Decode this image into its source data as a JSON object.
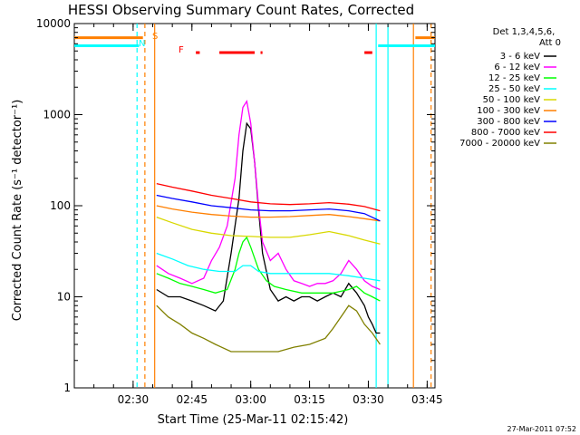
{
  "chart_data": {
    "type": "line",
    "title": "HESSI Observing Summary Count Rates, Corrected",
    "xlabel": "Start Time (25-Mar-11 02:15:42)",
    "ylabel": "Corrected Count Rate (s⁻¹ detector⁻¹)",
    "y_scale": "log",
    "xlim_minutes": [
      0,
      92
    ],
    "ylim": [
      1,
      10000
    ],
    "x_ticks": [
      {
        "m": 15,
        "label": "02:30"
      },
      {
        "m": 30,
        "label": "02:45"
      },
      {
        "m": 45,
        "label": "03:00"
      },
      {
        "m": 60,
        "label": "03:15"
      },
      {
        "m": 75,
        "label": "03:30"
      },
      {
        "m": 90,
        "label": "03:45"
      }
    ],
    "y_ticks": [
      {
        "v": 1,
        "label": "1"
      },
      {
        "v": 10,
        "label": "10"
      },
      {
        "v": 100,
        "label": "100"
      },
      {
        "v": 1000,
        "label": "1000"
      },
      {
        "v": 10000,
        "label": "10000"
      }
    ],
    "legend": {
      "header": [
        "Det 1,3,4,5,6,",
        "Att 0"
      ],
      "placement": "right"
    },
    "series": [
      {
        "name": "3 - 6 keV",
        "color": "#000000",
        "x": [
          21,
          24,
          27,
          30,
          33,
          36,
          38,
          40,
          42,
          43,
          44,
          45,
          46,
          47,
          48,
          50,
          52,
          54,
          56,
          58,
          60,
          62,
          64,
          66,
          68,
          70,
          72,
          74,
          75,
          76,
          77,
          78
        ],
        "y": [
          12,
          10,
          10,
          9,
          8,
          7,
          9,
          30,
          120,
          400,
          800,
          700,
          300,
          90,
          30,
          12,
          9,
          10,
          9,
          10,
          10,
          9,
          10,
          11,
          10,
          14,
          11,
          8,
          6,
          5,
          4,
          4
        ]
      },
      {
        "name": "6 - 12 keV",
        "color": "#ff00ff",
        "x": [
          21,
          24,
          27,
          30,
          33,
          35,
          37,
          39,
          41,
          42,
          43,
          44,
          45,
          46,
          47,
          48,
          50,
          52,
          54,
          56,
          58,
          60,
          62,
          64,
          66,
          68,
          70,
          72,
          74,
          76,
          78
        ],
        "y": [
          22,
          18,
          16,
          14,
          16,
          25,
          35,
          60,
          200,
          600,
          1200,
          1400,
          800,
          300,
          100,
          40,
          25,
          30,
          20,
          15,
          14,
          13,
          14,
          14,
          15,
          18,
          25,
          20,
          15,
          13,
          12
        ]
      },
      {
        "name": "12 - 25 keV",
        "color": "#00ff00",
        "x": [
          21,
          24,
          27,
          30,
          33,
          36,
          39,
          41,
          42,
          43,
          44,
          45,
          47,
          49,
          51,
          54,
          58,
          62,
          66,
          70,
          72,
          74,
          76,
          78
        ],
        "y": [
          18,
          16,
          14,
          13,
          12,
          11,
          12,
          20,
          30,
          40,
          45,
          35,
          20,
          15,
          13,
          12,
          11,
          11,
          11,
          12,
          13,
          11,
          10,
          9
        ]
      },
      {
        "name": "25 - 50 keV",
        "color": "#00ffff",
        "x": [
          21,
          25,
          29,
          33,
          37,
          41,
          43,
          45,
          47,
          50,
          55,
          60,
          65,
          70,
          74,
          78
        ],
        "y": [
          30,
          26,
          22,
          20,
          19,
          19,
          22,
          22,
          19,
          18,
          18,
          18,
          18,
          17,
          16,
          15
        ]
      },
      {
        "name": "50 - 100 keV",
        "color": "#d8d800",
        "x": [
          21,
          25,
          30,
          35,
          40,
          45,
          50,
          55,
          60,
          65,
          70,
          74,
          78
        ],
        "y": [
          75,
          65,
          55,
          50,
          47,
          46,
          45,
          45,
          48,
          52,
          47,
          42,
          38
        ]
      },
      {
        "name": "100 - 300 keV",
        "color": "#ff7f00",
        "x": [
          21,
          25,
          30,
          35,
          40,
          45,
          50,
          55,
          60,
          65,
          70,
          74,
          78
        ],
        "y": [
          100,
          92,
          85,
          80,
          77,
          75,
          75,
          76,
          78,
          80,
          76,
          72,
          68
        ]
      },
      {
        "name": "300 - 800 keV",
        "color": "#0000ff",
        "x": [
          21,
          25,
          30,
          35,
          40,
          45,
          50,
          55,
          60,
          65,
          70,
          74,
          78
        ],
        "y": [
          130,
          120,
          110,
          100,
          95,
          90,
          88,
          88,
          90,
          92,
          88,
          82,
          68
        ]
      },
      {
        "name": "800 - 7000 keV",
        "color": "#ff0000",
        "x": [
          21,
          25,
          30,
          35,
          40,
          45,
          50,
          55,
          60,
          65,
          70,
          74,
          78
        ],
        "y": [
          175,
          160,
          145,
          130,
          120,
          110,
          105,
          103,
          105,
          108,
          104,
          98,
          88
        ]
      },
      {
        "name": "7000 - 20000 keV",
        "color": "#808000",
        "x": [
          21,
          24,
          27,
          30,
          33,
          36,
          40,
          44,
          48,
          52,
          56,
          60,
          64,
          66,
          68,
          70,
          72,
          74,
          76,
          78
        ],
        "y": [
          8,
          6,
          5,
          4,
          3.5,
          3,
          2.5,
          2.5,
          2.5,
          2.5,
          2.8,
          3,
          3.5,
          4.5,
          6,
          8,
          7,
          5,
          4,
          3
        ]
      }
    ],
    "attenuator_lines": [
      {
        "m": 16.0,
        "color": "#00ffff",
        "dashed": true
      },
      {
        "m": 18.0,
        "color": "#ff7f00",
        "dashed": true
      },
      {
        "m": 20.5,
        "color": "#ff7f00",
        "dashed": false
      },
      {
        "m": 77.0,
        "color": "#00ffff",
        "dashed": false
      },
      {
        "m": 80.0,
        "color": "#00ffff",
        "dashed": false
      },
      {
        "m": 86.5,
        "color": "#ff7f00",
        "dashed": false
      },
      {
        "m": 91.0,
        "color": "#ff7f00",
        "dashed": true
      }
    ],
    "flags": [
      {
        "code": "S",
        "color": "#ff7f00",
        "value": 7000,
        "segments": [
          [
            0,
            17.5
          ],
          [
            87,
            92
          ]
        ]
      },
      {
        "code": "N",
        "color": "#00ffff",
        "value": 5700,
        "segments": [
          [
            0,
            16.5
          ],
          [
            77.5,
            92
          ]
        ]
      },
      {
        "code": "F",
        "color": "#ff0000",
        "value": 4800,
        "segments": [
          [
            31,
            32
          ],
          [
            37,
            46
          ],
          [
            47.5,
            48
          ],
          [
            74,
            76
          ]
        ]
      }
    ]
  },
  "footer": {
    "timestamp": "27-Mar-2011 07:52"
  }
}
